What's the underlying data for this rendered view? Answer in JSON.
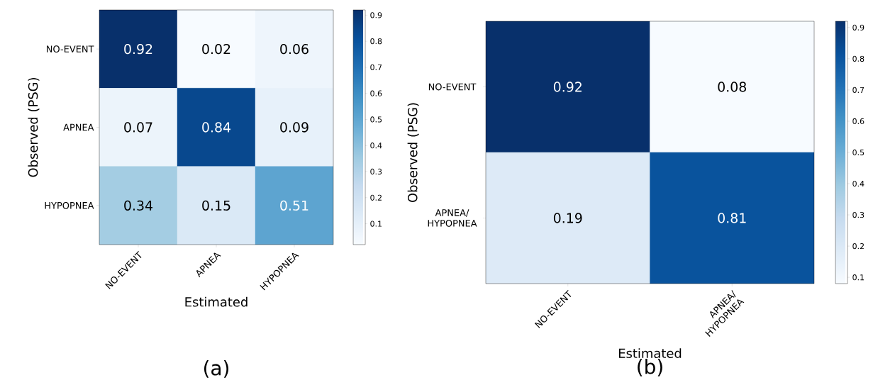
{
  "chart_data": [
    {
      "type": "heatmap",
      "xlabel": "Estimated",
      "ylabel": "Observed (PSG)",
      "categories": [
        "NO-EVENT",
        "APNEA",
        "HYPOPNEA"
      ],
      "y_categories": [
        "NO-EVENT",
        "APNEA",
        "HYPOPNEA"
      ],
      "cells": [
        [
          0.92,
          0.02,
          0.06
        ],
        [
          0.07,
          0.84,
          0.09
        ],
        [
          0.34,
          0.15,
          0.51
        ]
      ],
      "data_labels": true,
      "clim": [
        0.02,
        0.92
      ],
      "cticks": [
        0.1,
        0.2,
        0.3,
        0.4,
        0.5,
        0.6,
        0.7,
        0.8,
        0.9
      ],
      "annotations": [
        "(a)"
      ]
    },
    {
      "type": "heatmap",
      "xlabel": "Estimated",
      "ylabel": "Observed (PSG)",
      "categories": [
        "NO-EVENT",
        "APNEA/ HYPOPNEA"
      ],
      "y_categories": [
        "NO-EVENT",
        "APNEA/ HYPOPNEA"
      ],
      "cells": [
        [
          0.92,
          0.08
        ],
        [
          0.19,
          0.81
        ]
      ],
      "data_labels": true,
      "clim": [
        0.08,
        0.92
      ],
      "cticks": [
        0.1,
        0.2,
        0.3,
        0.4,
        0.5,
        0.6,
        0.7,
        0.8,
        0.9
      ],
      "annotations": [
        "(b)"
      ]
    }
  ]
}
